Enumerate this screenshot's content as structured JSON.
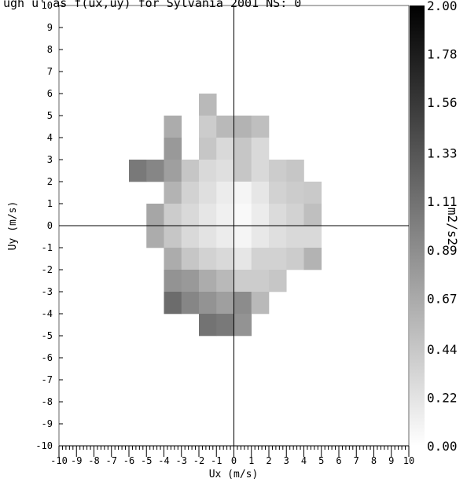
{
  "chart_data": {
    "type": "heatmap",
    "title": "ugh u' as f(ux,uy) for Sylvania 2001 NS: 0",
    "xlabel": "Ux (m/s)",
    "ylabel": "Uy (m/s)",
    "colorbar_label": "m2/s2",
    "xlim": [
      -10,
      10
    ],
    "ylim": [
      -10,
      10
    ],
    "x_tick_labels": [
      "-10",
      "-9",
      "-8",
      "-7",
      "-6",
      "-5",
      "-4",
      "-3",
      "-2",
      "-1",
      "0",
      "1",
      "2",
      "3",
      "4",
      "5",
      "6",
      "7",
      "8",
      "9",
      "10"
    ],
    "y_tick_labels": [
      "10",
      "9",
      "8",
      "7",
      "6",
      "5",
      "4",
      "3",
      "2",
      "1",
      "0",
      "-1",
      "-2",
      "-3",
      "-4",
      "-5",
      "-6",
      "-7",
      "-8",
      "-9",
      "-10"
    ],
    "colorbar_ticks": [
      "2.00",
      "1.78",
      "1.56",
      "1.33",
      "1.11",
      "0.89",
      "0.67",
      "0.44",
      "0.22",
      "0.00"
    ],
    "color_range": [
      0,
      2
    ],
    "colormap": "white-to-black",
    "reference_lines": {
      "x": 0,
      "y": 0
    },
    "cell_size": 1,
    "cells": [
      {
        "x": -2,
        "y": 5,
        "v": 0.55
      },
      {
        "x": -4,
        "y": 4,
        "v": 0.65
      },
      {
        "x": -2,
        "y": 4,
        "v": 0.4
      },
      {
        "x": -1,
        "y": 4,
        "v": 0.55
      },
      {
        "x": 0,
        "y": 4,
        "v": 0.6
      },
      {
        "x": 1,
        "y": 4,
        "v": 0.5
      },
      {
        "x": -4,
        "y": 3,
        "v": 0.8
      },
      {
        "x": -2,
        "y": 3,
        "v": 0.45
      },
      {
        "x": -1,
        "y": 3,
        "v": 0.3
      },
      {
        "x": 0,
        "y": 3,
        "v": 0.45
      },
      {
        "x": 1,
        "y": 3,
        "v": 0.3
      },
      {
        "x": -6,
        "y": 2,
        "v": 1.05
      },
      {
        "x": -5,
        "y": 2,
        "v": 0.95
      },
      {
        "x": -4,
        "y": 2,
        "v": 0.75
      },
      {
        "x": -3,
        "y": 2,
        "v": 0.45
      },
      {
        "x": -2,
        "y": 2,
        "v": 0.3
      },
      {
        "x": -1,
        "y": 2,
        "v": 0.25
      },
      {
        "x": 0,
        "y": 2,
        "v": 0.45
      },
      {
        "x": 1,
        "y": 2,
        "v": 0.3
      },
      {
        "x": 2,
        "y": 2,
        "v": 0.4
      },
      {
        "x": 3,
        "y": 2,
        "v": 0.45
      },
      {
        "x": -4,
        "y": 1,
        "v": 0.6
      },
      {
        "x": -3,
        "y": 1,
        "v": 0.35
      },
      {
        "x": -2,
        "y": 1,
        "v": 0.25
      },
      {
        "x": -1,
        "y": 1,
        "v": 0.15
      },
      {
        "x": 0,
        "y": 1,
        "v": 0.08
      },
      {
        "x": 1,
        "y": 1,
        "v": 0.2
      },
      {
        "x": 2,
        "y": 1,
        "v": 0.35
      },
      {
        "x": 3,
        "y": 1,
        "v": 0.4
      },
      {
        "x": 4,
        "y": 1,
        "v": 0.42
      },
      {
        "x": -5,
        "y": 0,
        "v": 0.7
      },
      {
        "x": -4,
        "y": 0,
        "v": 0.4
      },
      {
        "x": -3,
        "y": 0,
        "v": 0.3
      },
      {
        "x": -2,
        "y": 0,
        "v": 0.2
      },
      {
        "x": -1,
        "y": 0,
        "v": 0.12
      },
      {
        "x": 0,
        "y": 0,
        "v": 0.05
      },
      {
        "x": 1,
        "y": 0,
        "v": 0.15
      },
      {
        "x": 2,
        "y": 0,
        "v": 0.28
      },
      {
        "x": 3,
        "y": 0,
        "v": 0.35
      },
      {
        "x": 4,
        "y": 0,
        "v": 0.5
      },
      {
        "x": -5,
        "y": -1,
        "v": 0.65
      },
      {
        "x": -4,
        "y": -1,
        "v": 0.45
      },
      {
        "x": -3,
        "y": -1,
        "v": 0.3
      },
      {
        "x": -2,
        "y": -1,
        "v": 0.22
      },
      {
        "x": -1,
        "y": -1,
        "v": 0.15
      },
      {
        "x": 0,
        "y": -1,
        "v": 0.08
      },
      {
        "x": 1,
        "y": -1,
        "v": 0.18
      },
      {
        "x": 2,
        "y": -1,
        "v": 0.25
      },
      {
        "x": 3,
        "y": -1,
        "v": 0.3
      },
      {
        "x": 4,
        "y": -1,
        "v": 0.3
      },
      {
        "x": -4,
        "y": -2,
        "v": 0.65
      },
      {
        "x": -3,
        "y": -2,
        "v": 0.45
      },
      {
        "x": -2,
        "y": -2,
        "v": 0.35
      },
      {
        "x": -1,
        "y": -2,
        "v": 0.3
      },
      {
        "x": 0,
        "y": -2,
        "v": 0.2
      },
      {
        "x": 1,
        "y": -2,
        "v": 0.35
      },
      {
        "x": 2,
        "y": -2,
        "v": 0.35
      },
      {
        "x": 3,
        "y": -2,
        "v": 0.4
      },
      {
        "x": 4,
        "y": -2,
        "v": 0.6
      },
      {
        "x": -4,
        "y": -3,
        "v": 0.85
      },
      {
        "x": -3,
        "y": -3,
        "v": 0.8
      },
      {
        "x": -2,
        "y": -3,
        "v": 0.65
      },
      {
        "x": -1,
        "y": -3,
        "v": 0.55
      },
      {
        "x": 0,
        "y": -3,
        "v": 0.4
      },
      {
        "x": 1,
        "y": -3,
        "v": 0.4
      },
      {
        "x": 2,
        "y": -3,
        "v": 0.45
      },
      {
        "x": -4,
        "y": -4,
        "v": 1.15
      },
      {
        "x": -3,
        "y": -4,
        "v": 0.95
      },
      {
        "x": -2,
        "y": -4,
        "v": 0.85
      },
      {
        "x": -1,
        "y": -4,
        "v": 0.75
      },
      {
        "x": 0,
        "y": -4,
        "v": 0.9
      },
      {
        "x": 1,
        "y": -4,
        "v": 0.55
      },
      {
        "x": -2,
        "y": -5,
        "v": 1.1
      },
      {
        "x": -1,
        "y": -5,
        "v": 1.05
      },
      {
        "x": 0,
        "y": -5,
        "v": 0.85
      }
    ]
  }
}
